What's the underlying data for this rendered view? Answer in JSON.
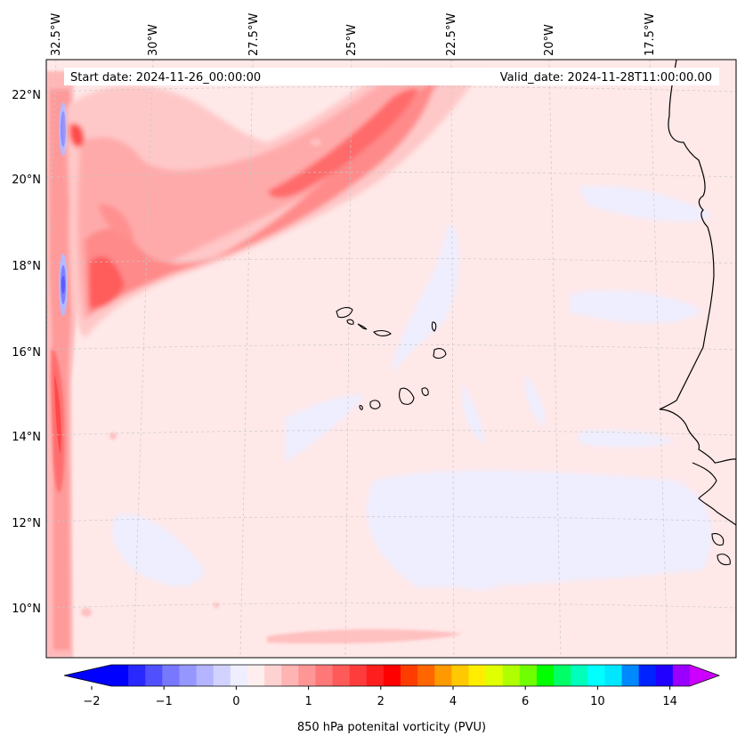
{
  "map": {
    "start_date": "Start date: 2024-11-26_00:00:00",
    "valid_date": "Valid_date: 2024-11-28T11:00:00.00",
    "lon_labels": [
      "32.5°W",
      "30°W",
      "27.5°W",
      "25°W",
      "22.5°W",
      "20°W",
      "17.5°W"
    ],
    "lat_labels": [
      "22°N",
      "20°N",
      "18°N",
      "16°N",
      "14°N",
      "12°N",
      "10°N"
    ],
    "colors": {
      "background_field": "#ffe8e8",
      "coast": "#000000",
      "grid": "#c8c8c8"
    }
  },
  "colorbar": {
    "title": "850 hPa potenital vorticity (PVU)",
    "tick_labels": [
      "−2",
      "−1",
      "0",
      "1",
      "2",
      "4",
      "6",
      "10",
      "14"
    ],
    "colors": [
      "#0000ff",
      "#2828ff",
      "#5050ff",
      "#7878ff",
      "#9696ff",
      "#b4b4ff",
      "#d2d2ff",
      "#eeeeff",
      "#ffeeee",
      "#ffd2d2",
      "#ffb4b4",
      "#ff9696",
      "#ff7878",
      "#ff5a5a",
      "#ff3c3c",
      "#ff1e1e",
      "#ff0000",
      "#ff3c00",
      "#ff6600",
      "#ff9900",
      "#ffc800",
      "#ffee00",
      "#e0ff00",
      "#b0ff00",
      "#70ff00",
      "#00ff00",
      "#00ff66",
      "#00ffbb",
      "#00ffff",
      "#00e6ff",
      "#0088ff",
      "#0022ff",
      "#2200ff",
      "#9900ff"
    ],
    "under_color": "#0000ff",
    "over_color": "#cc00ff"
  }
}
